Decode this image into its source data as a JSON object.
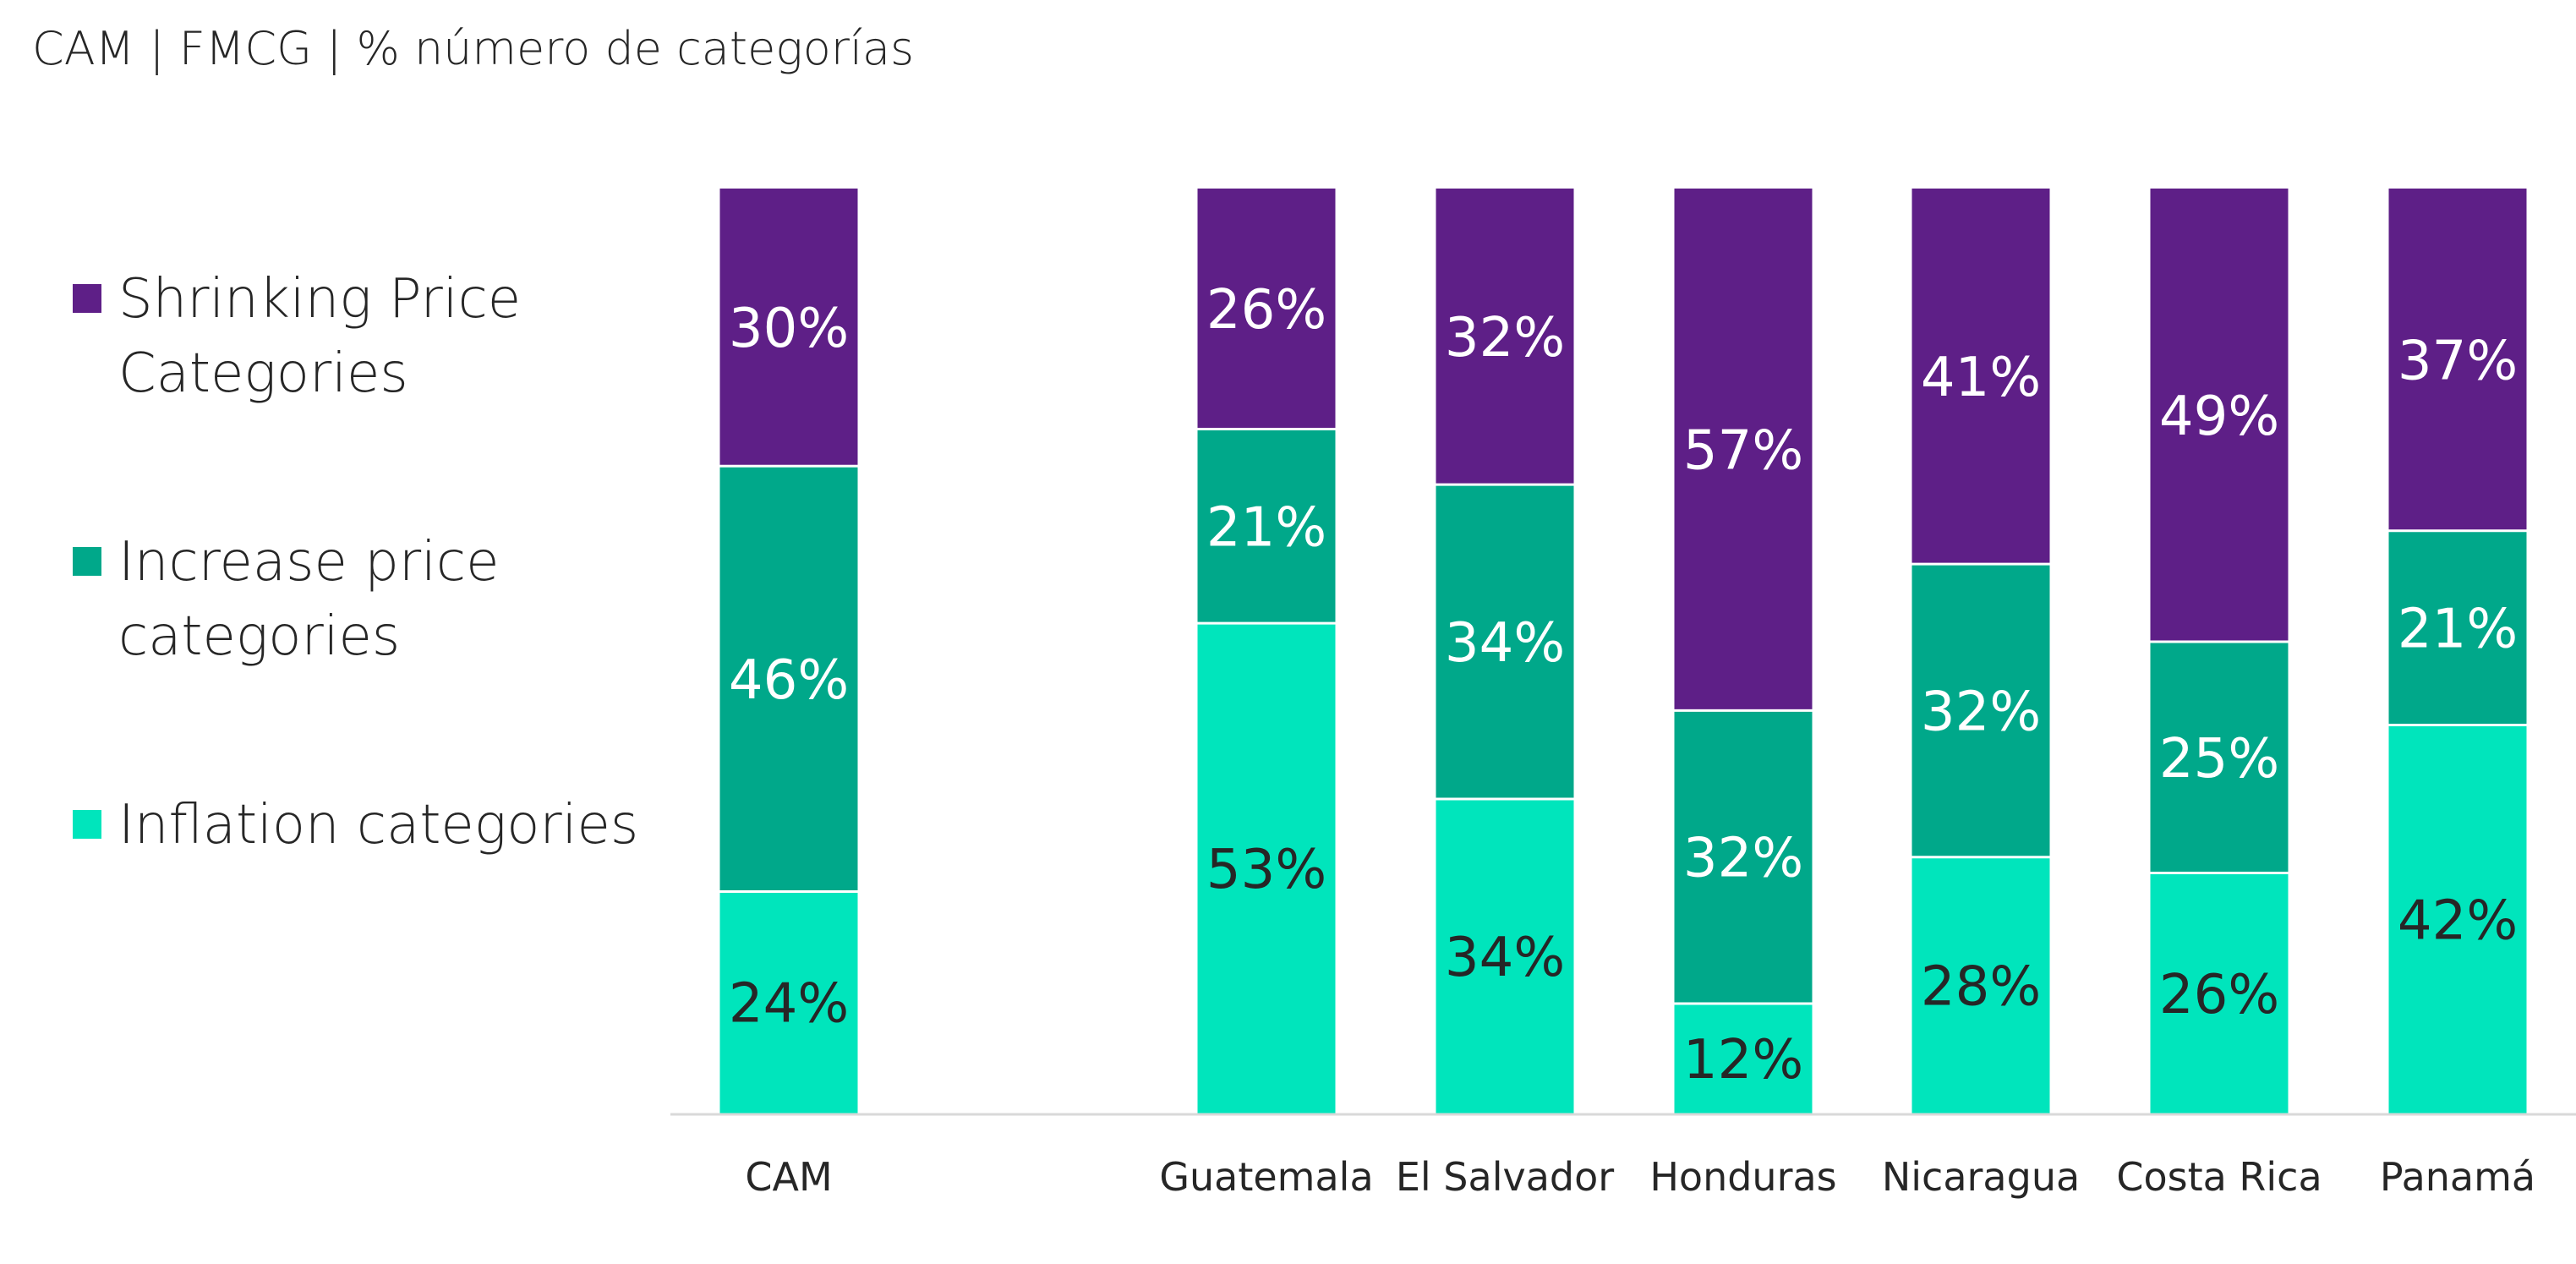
{
  "chart_data": {
    "type": "bar",
    "stacked": true,
    "title": "CAM | FMCG | % número de categorías",
    "categories": [
      "CAM",
      "Guatemala",
      "El Salvador",
      "Honduras",
      "Nicaragua",
      "Costa Rica",
      "Panamá"
    ],
    "series": [
      {
        "name": "Inflation categories",
        "color": "#00E5BC",
        "label_color": "#262626",
        "values": [
          24,
          53,
          34,
          12,
          28,
          26,
          42
        ],
        "labels": [
          "24%",
          "53%",
          "34%",
          "12%",
          "28%",
          "26%",
          "42%"
        ]
      },
      {
        "name": "Increase price categories",
        "color": "#00A88A",
        "label_color": "#FFFFFF",
        "values": [
          46,
          21,
          34,
          32,
          32,
          25,
          21
        ],
        "labels": [
          "46%",
          "21%",
          "34%",
          "32%",
          "32%",
          "25%",
          "21%"
        ]
      },
      {
        "name": "Shrinking Price Categories",
        "color": "#5E1F87",
        "label_color": "#FFFFFF",
        "values": [
          30,
          26,
          32,
          57,
          41,
          49,
          37
        ],
        "labels": [
          "30%",
          "26%",
          "32%",
          "57%",
          "41%",
          "49%",
          "37%"
        ]
      }
    ],
    "legend": {
      "placement": "left",
      "items": [
        {
          "lines": [
            "Shrinking Price",
            "Categories"
          ],
          "color": "#5E1F87"
        },
        {
          "lines": [
            "Increase price",
            "categories"
          ],
          "color": "#00A88A"
        },
        {
          "lines": [
            "Inflation categories"
          ],
          "color": "#00E5BC"
        }
      ]
    },
    "ylim": [
      0,
      100
    ],
    "grid": false,
    "y_axis_visible": false
  }
}
